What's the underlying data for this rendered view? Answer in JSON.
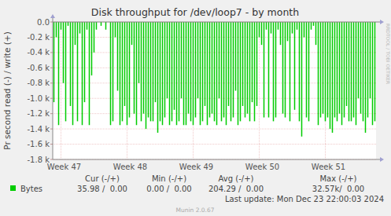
{
  "chart_data": {
    "type": "bar",
    "title": "Disk throughput for /dev/loop7 - by month",
    "y_label": "Pr second read (-) / write (+)",
    "categories": [
      null,
      null,
      null,
      "Week 47",
      null,
      null,
      null,
      null,
      null,
      null,
      null,
      null,
      null,
      null,
      null,
      null,
      null,
      null,
      null,
      null,
      null,
      null,
      null,
      null,
      null,
      null,
      null,
      null,
      null,
      null,
      null,
      "Week 48",
      null,
      null,
      null,
      null,
      null,
      null,
      null,
      null,
      null,
      null,
      null,
      null,
      null,
      null,
      null,
      null,
      null,
      null,
      null,
      null,
      null,
      null,
      null,
      null,
      null,
      null,
      null,
      "Week 49",
      null,
      null,
      null,
      null,
      null,
      null,
      null,
      null,
      null,
      null,
      null,
      null,
      null,
      null,
      null,
      null,
      null,
      null,
      null,
      null,
      null,
      null,
      null,
      null,
      null,
      null,
      null,
      "Week 50",
      null,
      null,
      null,
      null,
      null,
      null,
      null,
      null,
      null,
      null,
      null,
      null,
      null,
      null,
      null,
      null,
      null,
      null,
      null,
      null,
      null,
      null,
      null,
      null,
      null,
      null,
      null,
      "Week 51",
      null,
      null,
      null,
      null,
      null,
      null,
      null,
      null,
      null,
      null,
      null,
      null,
      null,
      null,
      null,
      null,
      null,
      null,
      null,
      null,
      null
    ],
    "series": [
      {
        "name": "Bytes",
        "color": "#00CC00",
        "values": [
          -1050,
          -200,
          -1350,
          -100,
          -800,
          -1300,
          -50,
          -1100,
          -1350,
          -300,
          -1300,
          -150,
          -1350,
          -1050,
          -100,
          -1350,
          -700,
          -400,
          -100,
          0,
          -50,
          0,
          -100,
          0,
          -1350,
          -1300,
          -200,
          -900,
          -1350,
          -1300,
          -1100,
          -1350,
          -1250,
          -300,
          -1200,
          -1350,
          -800,
          -1300,
          -1200,
          -1400,
          -1250,
          -1300,
          -1300,
          -1050,
          -1450,
          -1300,
          -1350,
          -1250,
          -1000,
          -1350,
          -1300,
          -1150,
          -1350,
          -1300,
          -1000,
          -1350,
          -1350,
          -1200,
          -1300,
          -1350,
          -1250,
          -1000,
          -1350,
          -1300,
          -1100,
          -1350,
          -1250,
          -1200,
          -1300,
          -1350,
          -1000,
          -1300,
          -1250,
          -1350,
          -1100,
          -1300,
          -1250,
          -900,
          -1350,
          -1300,
          -1100,
          -1250,
          -1200,
          -1300,
          -1050,
          -1300,
          -1100,
          -200,
          -300,
          -1250,
          -100,
          -1250,
          -150,
          -1300,
          -1250,
          -100,
          -300,
          -1200,
          -1250,
          -250,
          -1300,
          -150,
          -1150,
          -100,
          -1300,
          -1500,
          -200,
          -1250,
          -1300,
          -100,
          -50,
          -300,
          -1350,
          -1250,
          -1200,
          -1300,
          -1250,
          -1400,
          -1450,
          -1250,
          -1300,
          -1200,
          -1350,
          -1250,
          -1100,
          -1300,
          -1300,
          -1250,
          -1350,
          -1000,
          -1200,
          -1300,
          -1450,
          -1250,
          -1000,
          -1350,
          -1300
        ]
      }
    ],
    "ylim": [
      -1800,
      0
    ],
    "yticks": [
      {
        "value": 0,
        "label": "0.0"
      },
      {
        "value": -200,
        "label": "-0.2 k"
      },
      {
        "value": -400,
        "label": "-0.4 k"
      },
      {
        "value": -600,
        "label": "-0.6 k"
      },
      {
        "value": -800,
        "label": "-0.8 k"
      },
      {
        "value": -1000,
        "label": "-1.0 k"
      },
      {
        "value": -1200,
        "label": "-1.2 k"
      },
      {
        "value": -1400,
        "label": "-1.4 k"
      },
      {
        "value": -1600,
        "label": "-1.6 k"
      },
      {
        "value": -1800,
        "label": "-1.8 k"
      }
    ],
    "grid": true,
    "stats": {
      "headers": [
        "Cur (-/+)",
        "Min (-/+)",
        "Avg (-/+)",
        "Max (-/+)"
      ],
      "values": [
        "35.98 /  0.00",
        "0.00 /  0.00",
        "204.29 /  0.00",
        "32.57k/  0.00"
      ]
    },
    "footer": "Last update: Mon Dec 23 22:00:03 2024",
    "credit": "Munin 2.0.67",
    "watermark": "RRDTOOL / TOBI OETIKER"
  }
}
